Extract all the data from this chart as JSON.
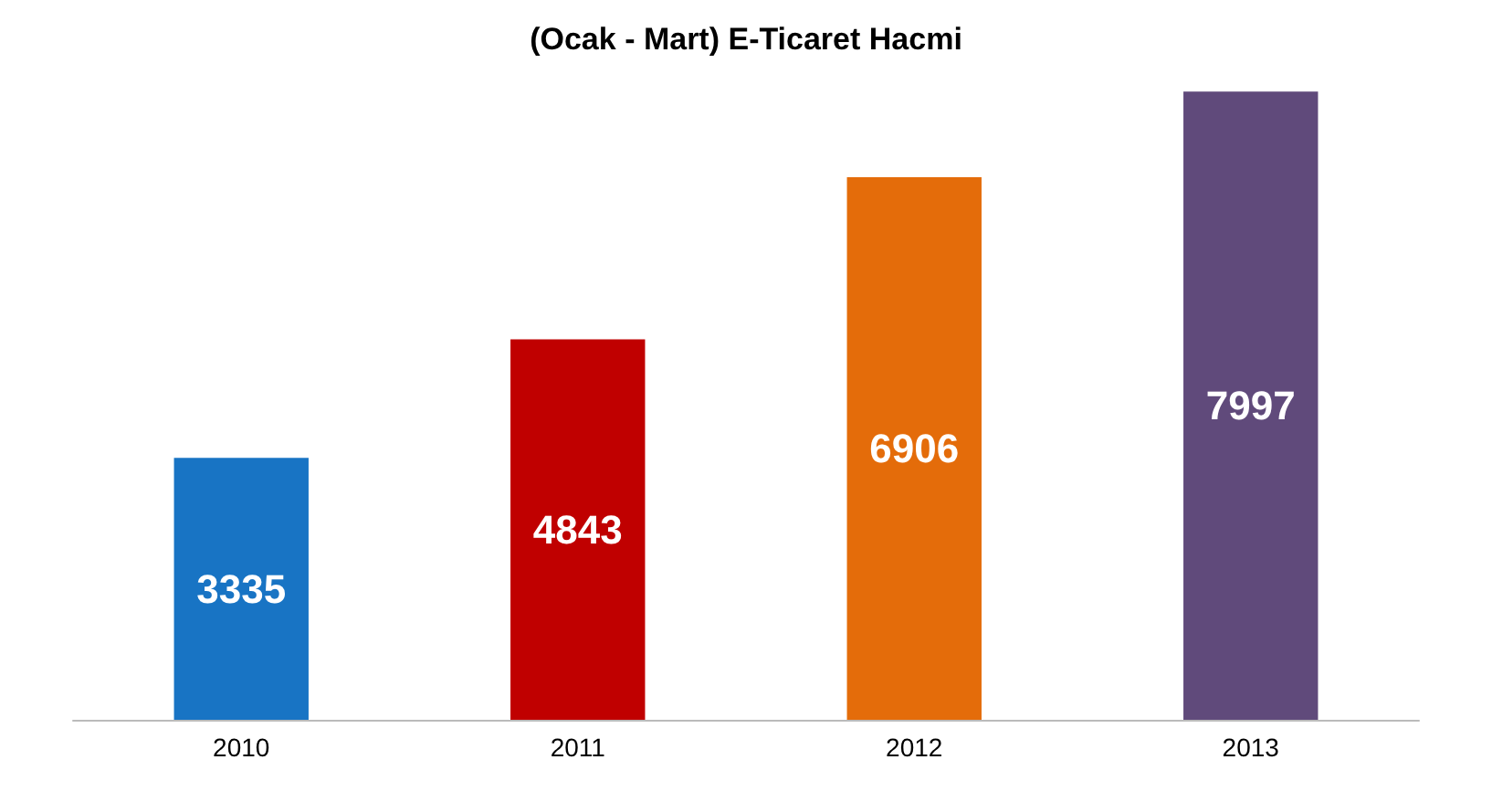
{
  "chart_data": {
    "type": "bar",
    "title": "(Ocak - Mart) E-Ticaret Hacmi",
    "categories": [
      "2010",
      "2011",
      "2012",
      "2013"
    ],
    "values": [
      3335,
      4843,
      6906,
      7997
    ],
    "colors": [
      "#1874c4",
      "#c00000",
      "#e46c0a",
      "#604a7b"
    ],
    "data_labels": true,
    "tick_labels": "x"
  }
}
